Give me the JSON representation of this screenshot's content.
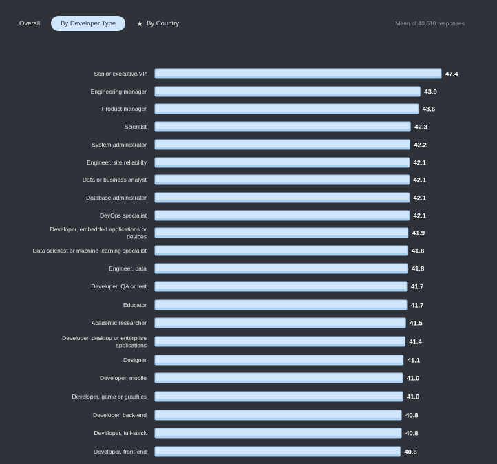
{
  "tabs": {
    "overall": "Overall",
    "by_developer_type": "By Developer Type",
    "by_country": "By Country"
  },
  "meta": "Mean of 40,610 responses",
  "chart_data": {
    "type": "bar",
    "orientation": "horizontal",
    "categories": [
      "Senior executive/VP",
      "Engineering manager",
      "Product manager",
      "Scientist",
      "System administrator",
      "Engineer, site reliability",
      "Data or business analyst",
      "Database administrator",
      "DevOps specialist",
      "Developer, embedded applications or devices",
      "Data scientist or machine learning specialist",
      "Engineer, data",
      "Developer, QA or test",
      "Educator",
      "Academic researcher",
      "Developer, desktop or enterprise applications",
      "Designer",
      "Developer, mobile",
      "Developer, game or graphics",
      "Developer, back-end",
      "Developer, full-stack",
      "Developer, front-end"
    ],
    "category_lines": [
      [
        "Senior executive/VP"
      ],
      [
        "Engineering manager"
      ],
      [
        "Product manager"
      ],
      [
        "Scientist"
      ],
      [
        "System administrator"
      ],
      [
        "Engineer, site reliability"
      ],
      [
        "Data or business analyst"
      ],
      [
        "Database administrator"
      ],
      [
        "DevOps specialist"
      ],
      [
        "Developer, embedded applications or",
        "devices"
      ],
      [
        "Data scientist or machine learning specialist"
      ],
      [
        "Engineer, data"
      ],
      [
        "Developer, QA or test"
      ],
      [
        "Educator"
      ],
      [
        "Academic researcher"
      ],
      [
        "Developer, desktop or enterprise",
        "applications"
      ],
      [
        "Designer"
      ],
      [
        "Developer, mobile"
      ],
      [
        "Developer, game or graphics"
      ],
      [
        "Developer, back-end"
      ],
      [
        "Developer, full-stack"
      ],
      [
        "Developer, front-end"
      ]
    ],
    "values": [
      47.4,
      43.9,
      43.6,
      42.3,
      42.2,
      42.1,
      42.1,
      42.1,
      42.1,
      41.9,
      41.8,
      41.8,
      41.7,
      41.7,
      41.5,
      41.4,
      41.1,
      41.0,
      41.0,
      40.8,
      40.8,
      40.6
    ],
    "value_labels": [
      "47.4",
      "43.9",
      "43.6",
      "42.3",
      "42.2",
      "42.1",
      "42.1",
      "42.1",
      "42.1",
      "41.9",
      "41.8",
      "41.8",
      "41.7",
      "41.7",
      "41.5",
      "41.4",
      "41.1",
      "41.0",
      "41.0",
      "40.8",
      "40.8",
      "40.6"
    ],
    "xlim": [
      0,
      47.4
    ],
    "grid": false,
    "bar_color": "#cfe6fa",
    "bar_edge_color": "#9cc6ec",
    "label_color": "#e4e6e8",
    "value_label_color": "#ffffff"
  }
}
